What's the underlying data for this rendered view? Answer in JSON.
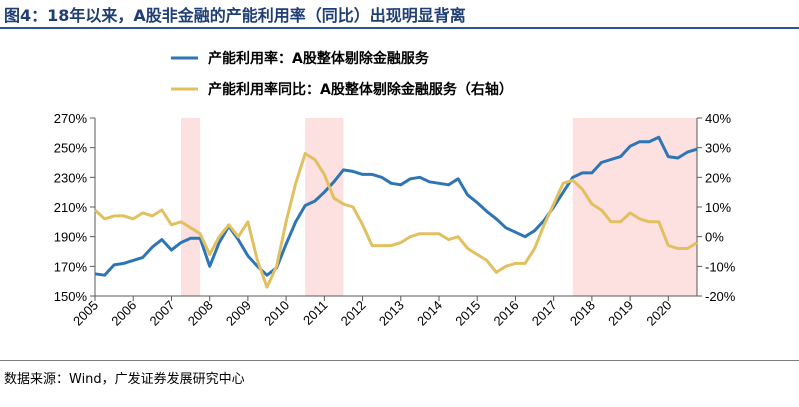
{
  "figure": {
    "title": "图4：18年以来，A股非金融的产能利用率（同比）出现明显背离",
    "source": "数据来源：Wind，广发证券发展研究中心"
  },
  "colors": {
    "series_left": "#2e75b6",
    "series_right": "#e2c060",
    "shade": "#fde0e0",
    "title": "#1f3e73"
  },
  "chart_data": {
    "type": "line",
    "x_labels": [
      "2005",
      "2006",
      "2007",
      "2008",
      "2009",
      "2010",
      "2011",
      "2012",
      "2013",
      "2014",
      "2015",
      "2016",
      "2017",
      "2018",
      "2019",
      "2020"
    ],
    "xlim": [
      2005.0,
      2020.75
    ],
    "left_axis": {
      "ylim": [
        150,
        270
      ],
      "ticks": [
        "150%",
        "170%",
        "190%",
        "210%",
        "230%",
        "250%",
        "270%"
      ],
      "tick_values": [
        150,
        170,
        190,
        210,
        230,
        250,
        270
      ]
    },
    "right_axis": {
      "ylim": [
        -20,
        40
      ],
      "ticks": [
        "-20%",
        "-10%",
        "0%",
        "10%",
        "20%",
        "30%",
        "40%"
      ],
      "tick_values": [
        -20,
        -10,
        0,
        10,
        20,
        30,
        40
      ]
    },
    "shaded_periods": [
      [
        2007.25,
        2007.75
      ],
      [
        2010.5,
        2011.5
      ],
      [
        2017.5,
        2020.75
      ]
    ],
    "legend_position": "top",
    "series": [
      {
        "name": "产能利用率：A股整体剔除金融服务",
        "axis": "left",
        "x": [
          2005.0,
          2005.25,
          2005.5,
          2005.75,
          2006.0,
          2006.25,
          2006.5,
          2006.75,
          2007.0,
          2007.25,
          2007.5,
          2007.75,
          2008.0,
          2008.25,
          2008.5,
          2008.75,
          2009.0,
          2009.25,
          2009.5,
          2009.75,
          2010.0,
          2010.25,
          2010.5,
          2010.75,
          2011.0,
          2011.25,
          2011.5,
          2011.75,
          2012.0,
          2012.25,
          2012.5,
          2012.75,
          2013.0,
          2013.25,
          2013.5,
          2013.75,
          2014.0,
          2014.25,
          2014.5,
          2014.75,
          2015.0,
          2015.25,
          2015.5,
          2015.75,
          2016.0,
          2016.25,
          2016.5,
          2016.75,
          2017.0,
          2017.25,
          2017.5,
          2017.75,
          2018.0,
          2018.25,
          2018.5,
          2018.75,
          2019.0,
          2019.25,
          2019.5,
          2019.75,
          2020.0,
          2020.25,
          2020.5,
          2020.75
        ],
        "values": [
          165,
          164,
          171,
          172,
          174,
          176,
          183,
          188,
          181,
          186,
          189,
          189,
          170,
          186,
          197,
          188,
          177,
          170,
          164,
          169,
          185,
          200,
          211,
          214,
          220,
          227,
          235,
          234,
          232,
          232,
          230,
          226,
          225,
          229,
          230,
          227,
          226,
          225,
          229,
          218,
          213,
          207,
          202,
          196,
          193,
          190,
          194,
          201,
          210,
          220,
          230,
          233,
          233,
          240,
          242,
          244,
          251,
          254,
          254,
          257,
          244,
          243,
          247,
          249
        ]
      },
      {
        "name": "产能利用率同比：A股整体剔除金融服务（右轴）",
        "axis": "right",
        "x": [
          2005.0,
          2005.25,
          2005.5,
          2005.75,
          2006.0,
          2006.25,
          2006.5,
          2006.75,
          2007.0,
          2007.25,
          2007.5,
          2007.75,
          2008.0,
          2008.25,
          2008.5,
          2008.75,
          2009.0,
          2009.25,
          2009.5,
          2009.75,
          2010.0,
          2010.25,
          2010.5,
          2010.75,
          2011.0,
          2011.25,
          2011.5,
          2011.75,
          2012.0,
          2012.25,
          2012.5,
          2012.75,
          2013.0,
          2013.25,
          2013.5,
          2013.75,
          2014.0,
          2014.25,
          2014.5,
          2014.75,
          2015.0,
          2015.25,
          2015.5,
          2015.75,
          2016.0,
          2016.25,
          2016.5,
          2016.75,
          2017.0,
          2017.25,
          2017.5,
          2017.75,
          2018.0,
          2018.25,
          2018.5,
          2018.75,
          2019.0,
          2019.25,
          2019.5,
          2019.75,
          2020.0,
          2020.25,
          2020.5,
          2020.75
        ],
        "values": [
          9,
          6,
          7,
          7,
          6,
          8,
          7,
          9,
          4,
          5,
          3,
          1,
          -6,
          0,
          4,
          0,
          5,
          -8,
          -17,
          -10,
          5,
          18,
          28,
          26,
          21,
          13,
          11,
          10,
          4,
          -3,
          -3,
          -3,
          -2,
          0,
          1,
          1,
          1,
          -1,
          0,
          -4,
          -6,
          -8,
          -12,
          -10,
          -9,
          -9,
          -4,
          4,
          11,
          18,
          19,
          16,
          11,
          9,
          5,
          5,
          8,
          6,
          5,
          5,
          -3,
          -4,
          -4,
          -2
        ]
      }
    ]
  }
}
